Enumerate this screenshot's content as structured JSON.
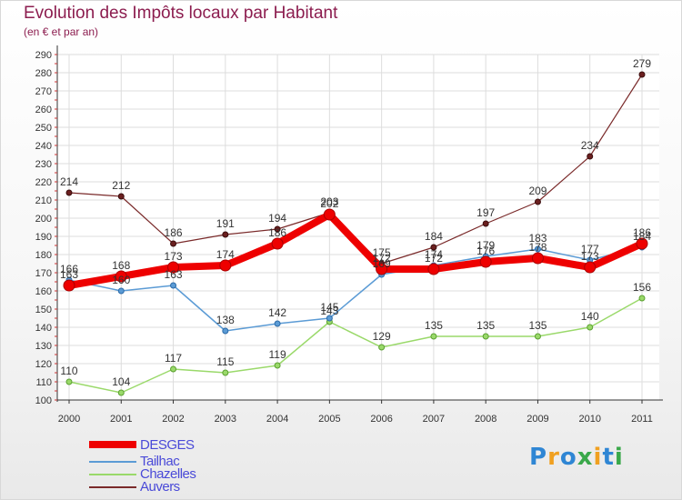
{
  "header": {
    "title": "Evolution des Impôts locaux par Habitant",
    "subtitle": "(en € et par an)"
  },
  "logo": {
    "letters": [
      {
        "char": "P",
        "color": "#2f86d4"
      },
      {
        "char": "r",
        "color": "#f0a020"
      },
      {
        "char": "o",
        "color": "#2f86d4"
      },
      {
        "char": "x",
        "color": "#3aa84a"
      },
      {
        "char": "i",
        "color": "#f0a020"
      },
      {
        "char": "t",
        "color": "#2f86d4"
      },
      {
        "char": "i",
        "color": "#3aa84a"
      }
    ]
  },
  "chart_data": {
    "type": "line",
    "title": "Evolution des Impôts locaux par Habitant",
    "subtitle": "(en € et par an)",
    "categories": [
      "2000",
      "2001",
      "2002",
      "2003",
      "2004",
      "2005",
      "2006",
      "2007",
      "2008",
      "2009",
      "2010",
      "2011"
    ],
    "ylim": [
      100,
      290
    ],
    "yticks": [
      100,
      110,
      120,
      130,
      140,
      150,
      160,
      170,
      180,
      190,
      200,
      210,
      220,
      230,
      240,
      250,
      260,
      270,
      280,
      290
    ],
    "grid": true,
    "legend_position": "bottom-left",
    "series": [
      {
        "name": "DESGES",
        "color": "#ee0000",
        "values": [
          163,
          168,
          173,
          174,
          186,
          202,
          172,
          172,
          176,
          178,
          173,
          186
        ]
      },
      {
        "name": "Tailhac",
        "color": "#5b9bd5",
        "values": [
          166,
          160,
          163,
          138,
          142,
          145,
          169,
          174,
          179,
          183,
          177,
          184
        ]
      },
      {
        "name": "Chazelles",
        "color": "#9ad96a",
        "values": [
          110,
          104,
          117,
          115,
          119,
          143,
          129,
          135,
          135,
          135,
          140,
          156
        ]
      },
      {
        "name": "Auvers",
        "color": "#7a2a2a",
        "values": [
          214,
          212,
          186,
          191,
          194,
          203,
          175,
          184,
          197,
          209,
          234,
          279
        ]
      }
    ]
  }
}
